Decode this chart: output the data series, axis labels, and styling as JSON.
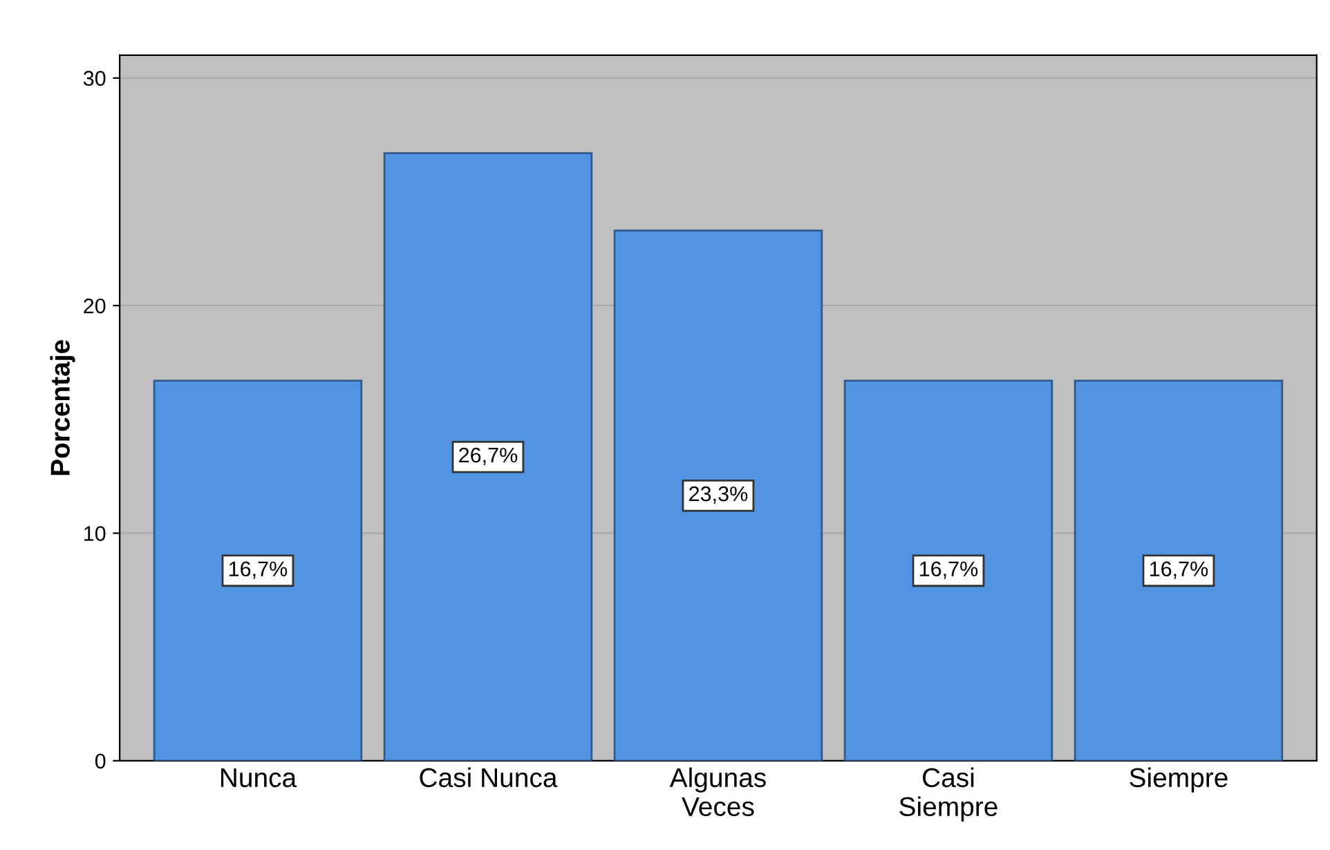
{
  "chart_data": {
    "type": "bar",
    "ylabel": "Porcentaje",
    "categories": [
      "Nunca",
      "Casi Nunca",
      "Algunas\nVeces",
      "Casi\nSiempre",
      "Siempre"
    ],
    "values": [
      16.7,
      26.7,
      23.3,
      16.7,
      16.7
    ],
    "value_labels": [
      "16,7%",
      "26,7%",
      "23,3%",
      "16,7%",
      "16,7%"
    ],
    "color": "#5294e2",
    "ylim": [
      0,
      31
    ],
    "yticks": [
      0,
      10,
      20,
      30
    ],
    "grid": "y",
    "legend": false
  }
}
